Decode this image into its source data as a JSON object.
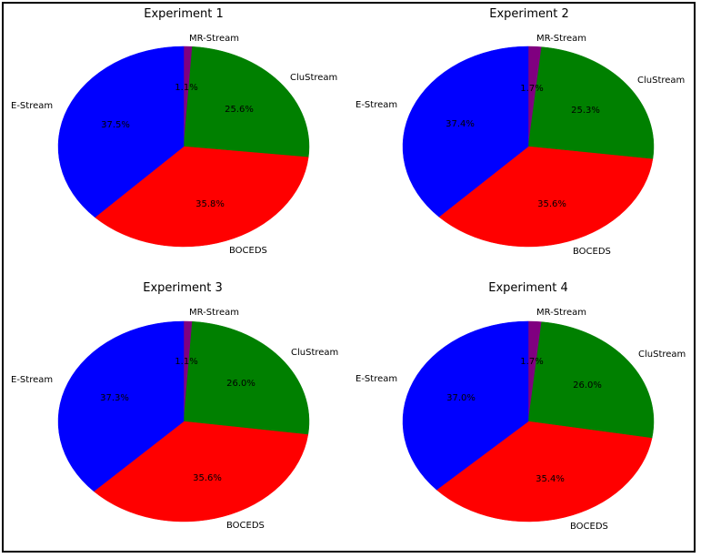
{
  "chart_data": [
    {
      "type": "pie",
      "title": "Experiment 1",
      "labels": [
        "MR-Stream",
        "CluStream",
        "BOCEDS",
        "E-Stream"
      ],
      "values": [
        1.1,
        25.6,
        35.8,
        37.5
      ],
      "pct_labels": [
        "1.1%",
        "25.6%",
        "35.8%",
        "37.5%"
      ],
      "colors": [
        "#800080",
        "#008000",
        "#ff0000",
        "#0000ff"
      ]
    },
    {
      "type": "pie",
      "title": "Experiment 2",
      "labels": [
        "MR-Stream",
        "CluStream",
        "BOCEDS",
        "E-Stream"
      ],
      "values": [
        1.7,
        25.3,
        35.6,
        37.4
      ],
      "pct_labels": [
        "1.7%",
        "25.3%",
        "35.6%",
        "37.4%"
      ],
      "colors": [
        "#800080",
        "#008000",
        "#ff0000",
        "#0000ff"
      ]
    },
    {
      "type": "pie",
      "title": "Experiment 3",
      "labels": [
        "MR-Stream",
        "CluStream",
        "BOCEDS",
        "E-Stream"
      ],
      "values": [
        1.1,
        26.0,
        35.6,
        37.3
      ],
      "pct_labels": [
        "1.1%",
        "26.0%",
        "35.6%",
        "37.3%"
      ],
      "colors": [
        "#800080",
        "#008000",
        "#ff0000",
        "#0000ff"
      ]
    },
    {
      "type": "pie",
      "title": "Experiment 4",
      "labels": [
        "MR-Stream",
        "CluStream",
        "BOCEDS",
        "E-Stream"
      ],
      "values": [
        1.7,
        26.0,
        35.4,
        37.0
      ],
      "pct_labels": [
        "1.7%",
        "26.0%",
        "35.4%",
        "37.0%"
      ],
      "colors": [
        "#800080",
        "#008000",
        "#ff0000",
        "#0000ff"
      ]
    }
  ]
}
